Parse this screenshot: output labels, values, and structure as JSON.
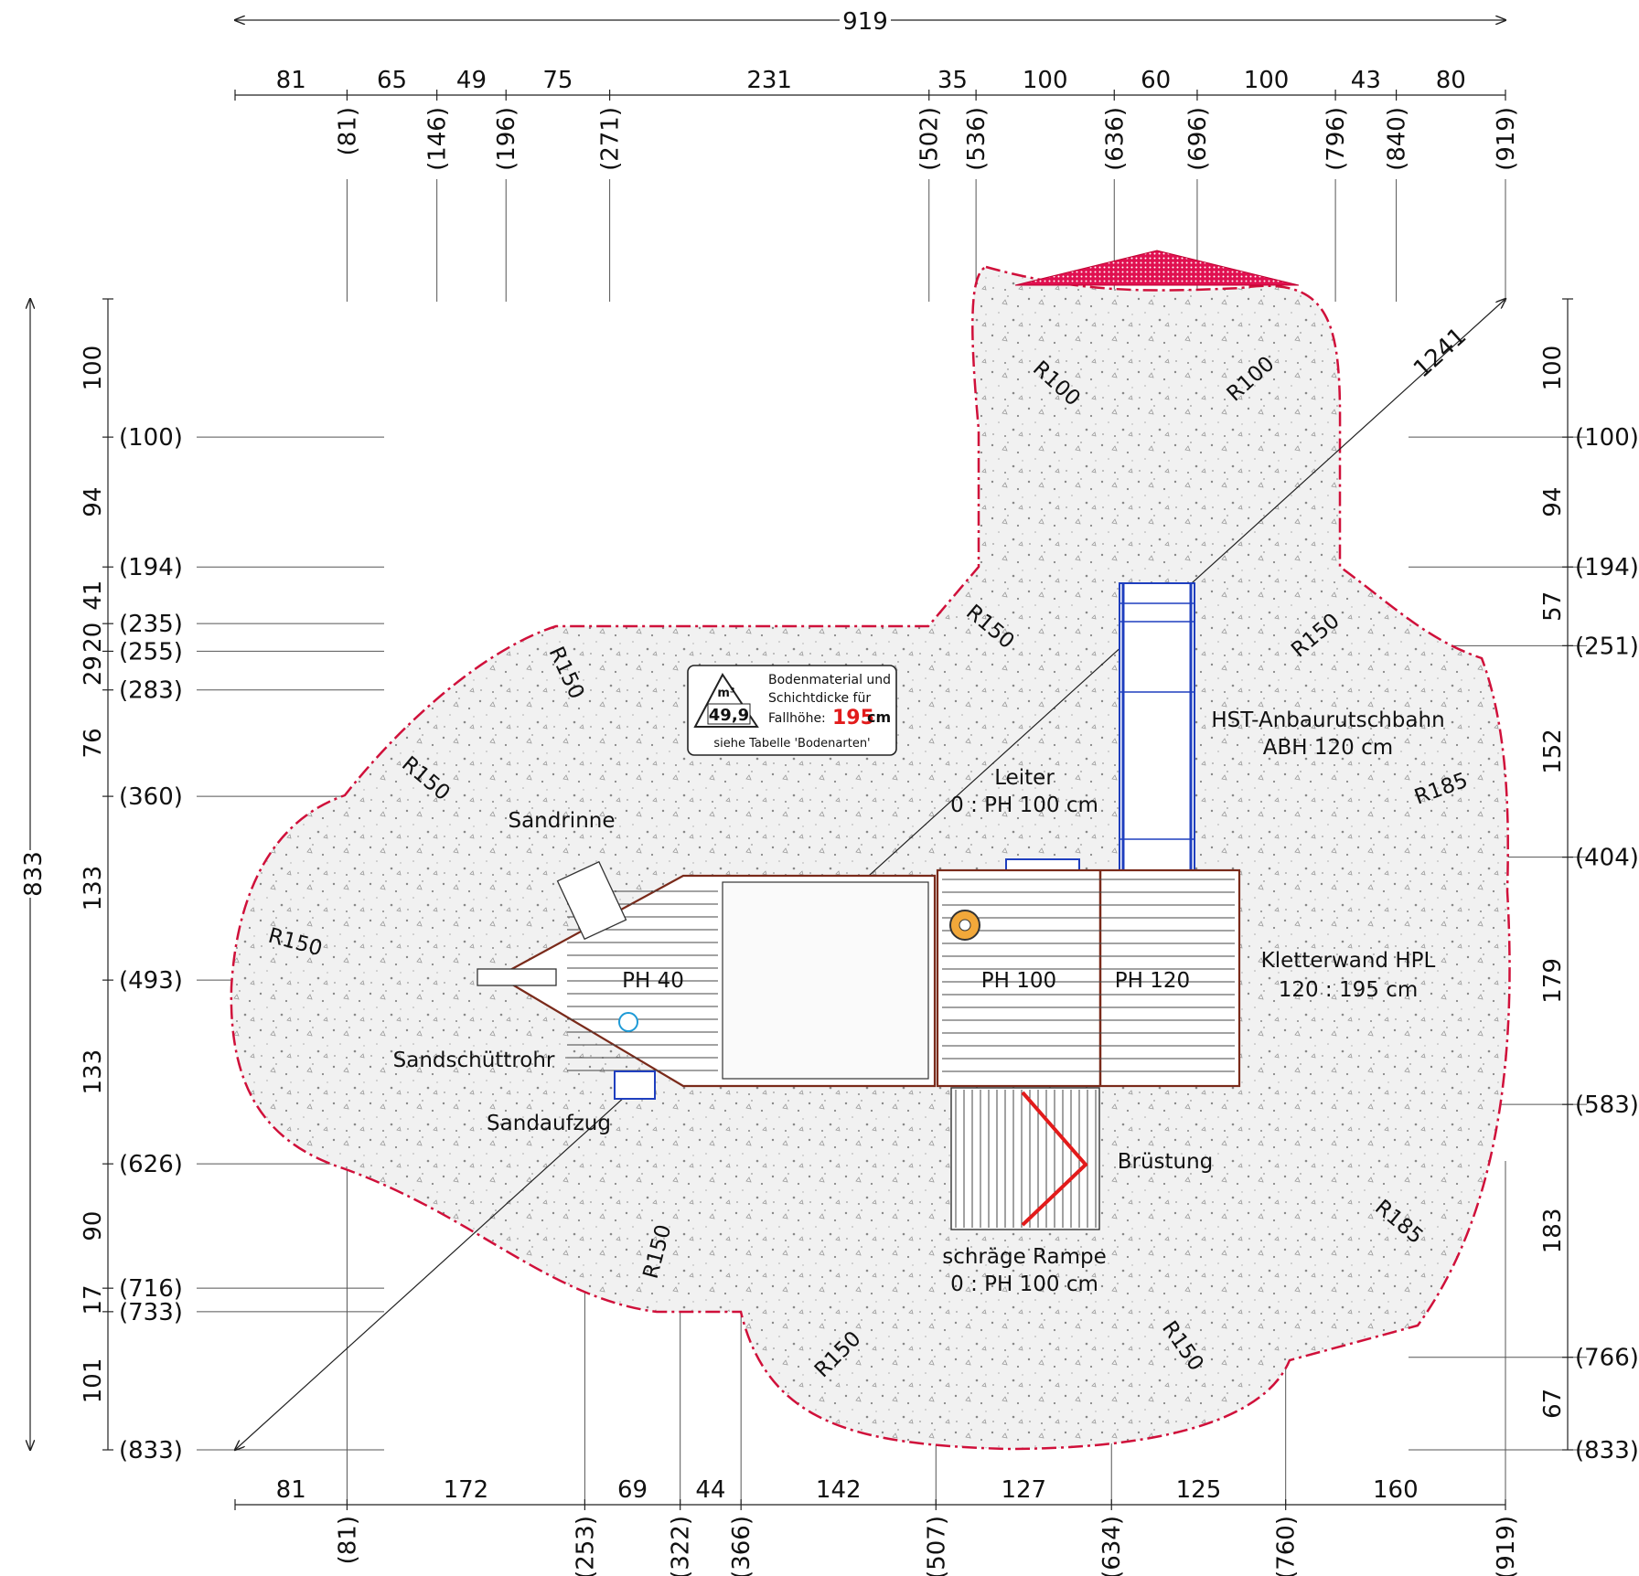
{
  "overall": {
    "width": "919",
    "height": "833",
    "diagonal": "1241"
  },
  "top_dims": {
    "segments": [
      "81",
      "65",
      "49",
      "75",
      "231",
      "35",
      "100",
      "60",
      "100",
      "43",
      "80"
    ],
    "cumulative": [
      "(81)",
      "(146)",
      "(196)",
      "(271)",
      "(502)",
      "(536)",
      "(636)",
      "(696)",
      "(796)",
      "(840)",
      "(919)"
    ]
  },
  "bottom_dims": {
    "segments": [
      "81",
      "172",
      "69",
      "44",
      "142",
      "127",
      "125",
      "160"
    ],
    "cumulative": [
      "(81)",
      "(253)",
      "(322)",
      "(366)",
      "(507)",
      "(634)",
      "(760)",
      "(919)"
    ]
  },
  "left_dims": {
    "segments": [
      "100",
      "94",
      "41",
      "20",
      "29",
      "76",
      "133",
      "133",
      "90",
      "17",
      "101"
    ],
    "cumulative": [
      "(100)",
      "(194)",
      "(235)",
      "(255)",
      "(283)",
      "(360)",
      "(493)",
      "(626)",
      "(716)",
      "(733)",
      "(833)"
    ]
  },
  "right_dims": {
    "segments": [
      "100",
      "94",
      "57",
      "152",
      "179",
      "183",
      "67"
    ],
    "cumulative": [
      "(100)",
      "(194)",
      "(251)",
      "(404)",
      "(583)",
      "(766)",
      "(833)"
    ]
  },
  "radii": [
    "R100",
    "R100",
    "R150",
    "R150",
    "R150",
    "R150",
    "R150",
    "R150",
    "R150",
    "R150",
    "R185",
    "R185"
  ],
  "labels": {
    "sandrinne": "Sandrinne",
    "sandschuettrohr": "Sandschüttrohr",
    "sandaufzug": "Sandaufzug",
    "leiter_title": "Leiter",
    "leiter_sub": "0 : PH 100 cm",
    "slide_title": "HST-Anbaurutschbahn",
    "slide_sub": "ABH 120 cm",
    "wall_title": "Kletterwand HPL",
    "wall_sub": "120 : 195 cm",
    "bruestung": "Brüstung",
    "ramp_title": "schräge Rampe",
    "ramp_sub": "0 : PH 100 cm",
    "ph40": "PH 40",
    "ph100": "PH 100",
    "ph120": "PH 120"
  },
  "info_box": {
    "unit": "m³",
    "value": "49,9",
    "line1": "Bodenmaterial und",
    "line2": "Schichtdicke für",
    "fall_label": "Fallhöhe:",
    "fall_value": "195",
    "fall_unit": "cm",
    "line4": "siehe Tabelle 'Bodenarten'"
  },
  "colors": {
    "boundary": "#d0103a",
    "fill": "#eeeeee",
    "slide": "#1f3fbf",
    "accent": "#e21b1b",
    "brown": "#7a2a1a"
  }
}
